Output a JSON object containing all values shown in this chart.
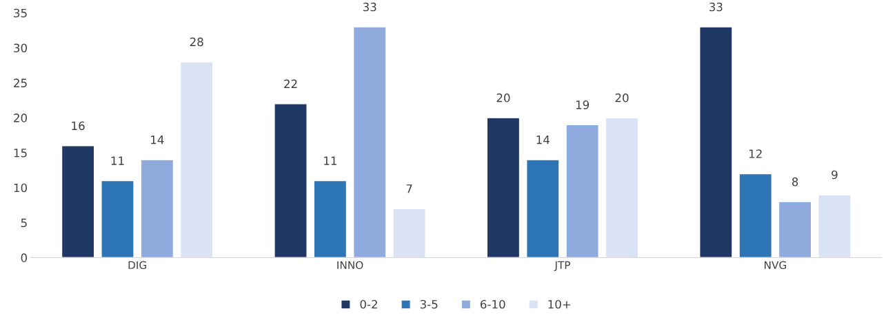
{
  "chart_data": {
    "type": "bar",
    "categories": [
      "DIG",
      "INNO",
      "JTP",
      "NVG"
    ],
    "series": [
      {
        "name": "0-2",
        "color": "#1f3864",
        "values": [
          16,
          22,
          20,
          33
        ]
      },
      {
        "name": "3-5",
        "color": "#2e75b6",
        "values": [
          11,
          11,
          14,
          12
        ]
      },
      {
        "name": "6-10",
        "color": "#8faadc",
        "values": [
          14,
          33,
          19,
          8
        ]
      },
      {
        "name": "10+",
        "color": "#dae3f3",
        "values": [
          28,
          7,
          20,
          9
        ]
      }
    ],
    "ylim": [
      0,
      35
    ],
    "yticks": [
      0,
      5,
      10,
      15,
      20,
      25,
      30,
      35
    ],
    "data_labels": true,
    "grid": false,
    "legend": "bottom"
  }
}
